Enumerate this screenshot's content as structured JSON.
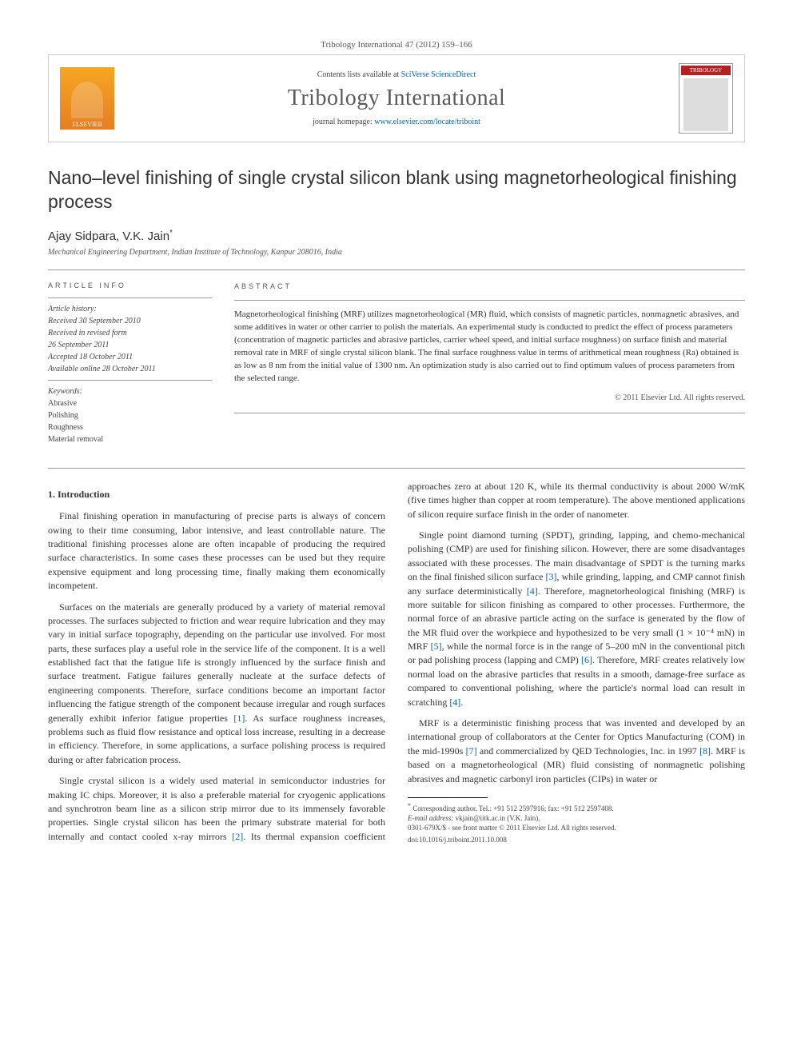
{
  "header": {
    "citation": "Tribology International 47 (2012) 159–166"
  },
  "banner": {
    "contents_prefix": "Contents lists available at ",
    "contents_link": "SciVerse ScienceDirect",
    "journal_name": "Tribology International",
    "homepage_prefix": "journal homepage: ",
    "homepage_url": "www.elsevier.com/locate/triboint",
    "publisher_label": "ELSEVIER",
    "cover_label": "TRIBOLOGY"
  },
  "article": {
    "title": "Nano–level finishing of single crystal silicon blank using magnetorheological finishing process",
    "authors": "Ajay Sidpara, V.K. Jain",
    "corr_marker": "*",
    "affiliation": "Mechanical Engineering Department, Indian Institute of Technology, Kanpur 208016, India"
  },
  "info": {
    "label": "ARTICLE INFO",
    "history_label": "Article history:",
    "history": [
      "Received 30 September 2010",
      "Received in revised form",
      "26 September 2011",
      "Accepted 18 October 2011",
      "Available online 28 October 2011"
    ],
    "keywords_label": "Keywords:",
    "keywords": [
      "Abrasive",
      "Polishing",
      "Roughness",
      "Material removal"
    ]
  },
  "abstract": {
    "label": "ABSTRACT",
    "text": "Magnetorheological finishing (MRF) utilizes magnetorheological (MR) fluid, which consists of magnetic particles, nonmagnetic abrasives, and some additives in water or other carrier to polish the materials. An experimental study is conducted to predict the effect of process parameters (concentration of magnetic particles and abrasive particles, carrier wheel speed, and initial surface roughness) on surface finish and material removal rate in MRF of single crystal silicon blank. The final surface roughness value in terms of arithmetical mean roughness (Ra) obtained is as low as 8 nm from the initial value of 1300 nm. An optimization study is also carried out to find optimum values of process parameters from the selected range.",
    "copyright": "© 2011 Elsevier Ltd. All rights reserved."
  },
  "body": {
    "section1_heading": "1.  Introduction",
    "p1": "Final finishing operation in manufacturing of precise parts is always of concern owing to their time consuming, labor intensive, and least controllable nature. The traditional finishing processes alone are often incapable of producing the required surface characteristics. In some cases these processes can be used but they require expensive equipment and long processing time, finally making them economically incompetent.",
    "p2a": "Surfaces on the materials are generally produced by a variety of material removal processes. The surfaces subjected to friction and wear require lubrication and they may vary in initial surface topography, depending on the particular use involved. For most parts, these surfaces play a useful role in the service life of the component. It is a well established fact that the fatigue life is strongly influenced by the surface finish and surface treatment. Fatigue failures generally nucleate at the surface defects of engineering components. Therefore, surface conditions become an important factor influencing the fatigue strength of the component because irregular and rough surfaces generally exhibit inferior fatigue properties ",
    "p2b": ". As surface roughness increases, problems such as fluid flow resistance and optical loss increase, resulting in a decrease in efficiency. Therefore, in some applications, a surface polishing process is required during or after fabrication process.",
    "p3a": "Single crystal silicon is a widely used material in semiconductor industries for making IC chips. Moreover, it is also a preferable material for cryogenic applications and synchrotron beam line as a silicon strip mirror due to its immensely favorable properties. Single crystal silicon has been the primary substrate material for both internally and contact cooled x-ray mirrors ",
    "p3b": ". Its thermal expansion coefficient approaches zero at about 120 K, while its thermal conductivity is about 2000 W/mK (five times higher than copper at room temperature). The above mentioned applications of silicon require surface finish in the order of nanometer.",
    "p4a": "Single point diamond turning (SPDT), grinding, lapping, and chemo-mechanical polishing (CMP) are used for finishing silicon. However, there are some disadvantages associated with these processes. The main disadvantage of SPDT is the turning marks on the final finished silicon surface ",
    "p4b": ", while grinding, lapping, and CMP cannot finish any surface deterministically ",
    "p4c": ". Therefore, magnetorheological finishing (MRF) is more suitable for silicon finishing as compared to other processes. Furthermore, the normal force of an abrasive particle acting on the surface is generated by the flow of the MR fluid over the workpiece and hypothesized to be very small (1 × 10⁻⁴ mN) in MRF ",
    "p4d": ", while the normal force is in the range of 5–200 mN in the conventional pitch or pad polishing process (lapping and CMP) ",
    "p4e": ". Therefore, MRF creates relatively low normal load on the abrasive particles that results in a smooth, damage-free surface as compared to conventional polishing, where the particle's normal load can result in scratching ",
    "p4f": ".",
    "p5a": "MRF is a deterministic finishing process that was invented and developed by an international group of collaborators at the Center for Optics Manufacturing (COM) in the mid-1990s ",
    "p5b": " and commercialized by QED Technologies, Inc. in 1997 ",
    "p5c": ". MRF is based on a magnetorheological (MR) fluid consisting of nonmagnetic polishing abrasives and magnetic carbonyl iron particles (CIPs) in water or",
    "refs": {
      "r1": "[1]",
      "r2": "[2]",
      "r3": "[3]",
      "r4": "[4]",
      "r5": "[5]",
      "r6": "[6]",
      "r7": "[7]",
      "r8": "[8]"
    }
  },
  "footnote": {
    "corr": "Corresponding author. Tel.: +91 512 2597916; fax: +91 512 2597408.",
    "email_label": "E-mail address:",
    "email": "vkjain@iitk.ac.in (V.K. Jain).",
    "copyright": "0301-679X/$ - see front matter © 2011 Elsevier Ltd. All rights reserved.",
    "doi": "doi:10.1016/j.triboint.2011.10.008"
  }
}
